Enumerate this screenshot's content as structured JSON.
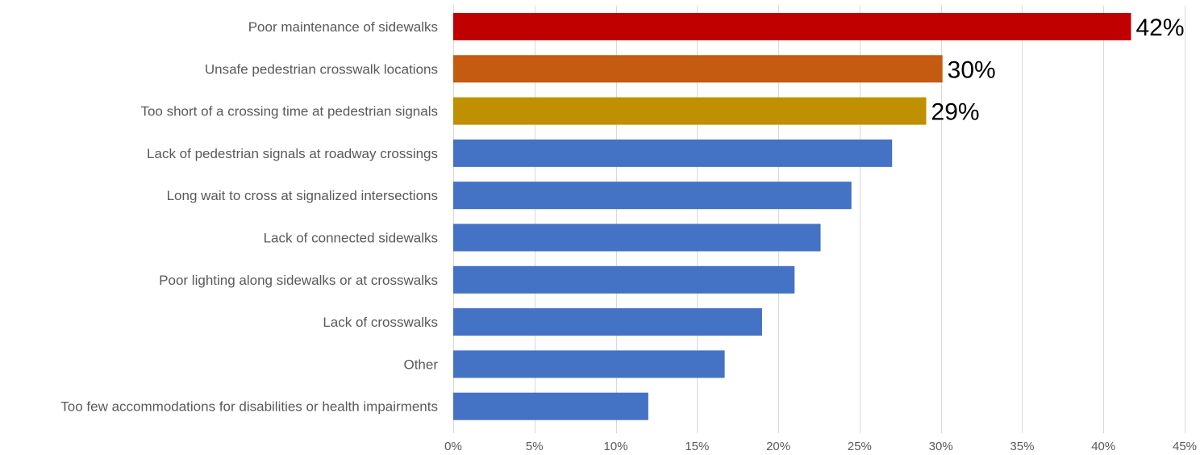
{
  "chart_data": {
    "type": "bar",
    "orientation": "horizontal",
    "title": "",
    "xlabel": "",
    "ylabel": "",
    "categories": [
      "Poor maintenance of sidewalks",
      "Unsafe pedestrian crosswalk locations",
      "Too short of a crossing time at pedestrian signals",
      "Lack of pedestrian signals at roadway crossings",
      "Long wait to cross at signalized intersections",
      "Lack of connected sidewalks",
      "Poor lighting along sidewalks or at crosswalks",
      "Lack of crosswalks",
      "Other",
      "Too few accommodations for disabilities or health impairments"
    ],
    "values": [
      41.7,
      30.1,
      29.1,
      27.0,
      24.5,
      22.6,
      21.0,
      19.0,
      16.7,
      12.0
    ],
    "colors": [
      "#c00000",
      "#c55a11",
      "#bf9000",
      "#4472c4",
      "#4472c4",
      "#4472c4",
      "#4472c4",
      "#4472c4",
      "#4472c4",
      "#4472c4"
    ],
    "data_labels": [
      "42%",
      "30%",
      "29%",
      "",
      "",
      "",
      "",
      "",
      "",
      ""
    ],
    "xlim": [
      0,
      45
    ],
    "xticks": [
      0,
      5,
      10,
      15,
      20,
      25,
      30,
      35,
      40,
      45
    ],
    "xtick_labels": [
      "0%",
      "5%",
      "10%",
      "15%",
      "20%",
      "25%",
      "30%",
      "35%",
      "40%",
      "45%"
    ],
    "grid": true,
    "legend": "none"
  }
}
